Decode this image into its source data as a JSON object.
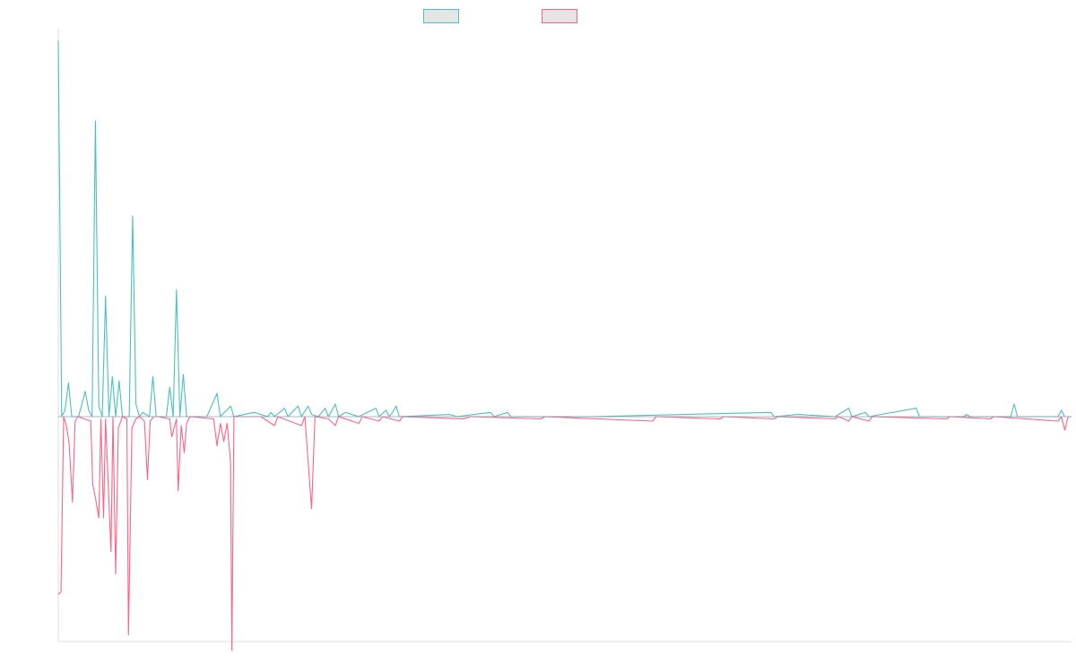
{
  "chart_data": {
    "type": "line",
    "title": "",
    "xlabel": "",
    "ylabel": "",
    "legend_position": "top-center",
    "grid": false,
    "colors": {
      "series_a": "#4bc0c0",
      "series_b": "#ff6384",
      "legend_fill": "#e5e5e5",
      "axis": "#dddddd",
      "zero_line": "#8899aa"
    },
    "x_range": [
      0,
      300
    ],
    "ylim": [
      -1.0,
      1.82
    ],
    "series": [
      {
        "name": "",
        "color": "#4bc0c0",
        "points": [
          [
            0,
            1.78
          ],
          [
            1,
            0.0
          ],
          [
            2,
            0.03
          ],
          [
            3,
            0.16
          ],
          [
            4,
            0.0
          ],
          [
            5,
            0.0
          ],
          [
            6,
            0.0
          ],
          [
            8,
            0.12
          ],
          [
            9,
            0.03
          ],
          [
            10,
            0.0
          ],
          [
            11,
            1.4
          ],
          [
            12,
            0.05
          ],
          [
            13,
            0.0
          ],
          [
            14,
            0.57
          ],
          [
            15,
            0.0
          ],
          [
            16,
            0.19
          ],
          [
            17,
            0.0
          ],
          [
            18,
            0.17
          ],
          [
            19,
            0.0
          ],
          [
            20,
            0.0
          ],
          [
            21,
            0.0
          ],
          [
            22,
            0.95
          ],
          [
            23,
            0.06
          ],
          [
            24,
            0.0
          ],
          [
            25,
            0.02
          ],
          [
            27,
            0.0
          ],
          [
            28,
            0.19
          ],
          [
            29,
            0.0
          ],
          [
            32,
            0.0
          ],
          [
            33,
            0.14
          ],
          [
            34,
            0.0
          ],
          [
            35,
            0.6
          ],
          [
            36,
            0.0
          ],
          [
            37,
            0.2
          ],
          [
            38,
            0.0
          ],
          [
            44,
            0.0
          ],
          [
            47,
            0.11
          ],
          [
            48,
            0.0
          ],
          [
            51,
            0.05
          ],
          [
            52,
            0.0
          ],
          [
            55,
            0.01
          ],
          [
            58,
            0.02
          ],
          [
            62,
            0.0
          ],
          [
            63,
            0.02
          ],
          [
            64,
            0.0
          ],
          [
            67,
            0.04
          ],
          [
            68,
            0.0
          ],
          [
            71,
            0.05
          ],
          [
            72,
            0.0
          ],
          [
            74,
            0.05
          ],
          [
            75,
            0.01
          ],
          [
            77,
            0.0
          ],
          [
            79,
            0.04
          ],
          [
            80,
            0.0
          ],
          [
            82,
            0.06
          ],
          [
            83,
            0.0
          ],
          [
            85,
            0.02
          ],
          [
            89,
            0.0
          ],
          [
            94,
            0.04
          ],
          [
            95,
            0.0
          ],
          [
            97,
            0.03
          ],
          [
            98,
            0.0
          ],
          [
            99,
            0.02
          ],
          [
            100,
            0.05
          ],
          [
            101,
            0.0
          ],
          [
            116,
            0.01
          ],
          [
            118,
            0.0
          ],
          [
            128,
            0.02
          ],
          [
            129,
            0.0
          ],
          [
            133,
            0.02
          ],
          [
            134,
            0.0
          ],
          [
            158,
            0.0
          ],
          [
            211,
            0.02
          ],
          [
            212,
            0.0
          ],
          [
            219,
            0.01
          ],
          [
            230,
            0.0
          ],
          [
            234,
            0.04
          ],
          [
            235,
            0.0
          ],
          [
            239,
            0.02
          ],
          [
            240,
            0.0
          ],
          [
            254,
            0.04
          ],
          [
            255,
            0.0
          ],
          [
            268,
            0.0
          ],
          [
            269,
            0.01
          ],
          [
            270,
            0.0
          ],
          [
            282,
            0.0
          ],
          [
            283,
            0.06
          ],
          [
            284,
            0.0
          ],
          [
            296,
            0.0
          ],
          [
            297,
            0.03
          ],
          [
            298,
            0.0
          ]
        ]
      },
      {
        "name": "",
        "color": "#ff6384",
        "points": [
          [
            0,
            -0.79
          ],
          [
            0.8,
            -0.78
          ],
          [
            1.6,
            0.0
          ],
          [
            2.4,
            -0.04
          ],
          [
            3.2,
            -0.12
          ],
          [
            4.2,
            -0.38
          ],
          [
            5,
            -0.02
          ],
          [
            5.8,
            0.0
          ],
          [
            9.6,
            -0.02
          ],
          [
            10.2,
            -0.3
          ],
          [
            11,
            -0.36
          ],
          [
            12,
            -0.45
          ],
          [
            12.6,
            -0.01
          ],
          [
            13.4,
            -0.45
          ],
          [
            14,
            -0.01
          ],
          [
            15.6,
            -0.6
          ],
          [
            16.2,
            0.0
          ],
          [
            17,
            -0.7
          ],
          [
            17.8,
            -0.05
          ],
          [
            19,
            0.0
          ],
          [
            20.3,
            -0.01
          ],
          [
            20.8,
            -0.97
          ],
          [
            21.8,
            -0.05
          ],
          [
            23,
            -0.01
          ],
          [
            24,
            0.0
          ],
          [
            25.5,
            -0.02
          ],
          [
            26.4,
            -0.28
          ],
          [
            27.2,
            -0.02
          ],
          [
            28.2,
            0.0
          ],
          [
            29.5,
            0.0
          ],
          [
            33,
            -0.01
          ],
          [
            33.6,
            -0.09
          ],
          [
            35,
            -0.01
          ],
          [
            35.5,
            -0.33
          ],
          [
            36.4,
            -0.04
          ],
          [
            37.3,
            -0.16
          ],
          [
            38,
            -0.03
          ],
          [
            39,
            0.0
          ],
          [
            46,
            -0.01
          ],
          [
            47,
            -0.13
          ],
          [
            48,
            -0.03
          ],
          [
            49,
            -0.11
          ],
          [
            50,
            -0.03
          ],
          [
            51,
            -0.2
          ],
          [
            51.4,
            -1.04
          ],
          [
            52,
            0.0
          ],
          [
            60,
            0.0
          ],
          [
            64,
            -0.04
          ],
          [
            65,
            0.0
          ],
          [
            72,
            -0.04
          ],
          [
            73,
            0.0
          ],
          [
            75,
            -0.41
          ],
          [
            76,
            0.0
          ],
          [
            80,
            -0.01
          ],
          [
            82,
            -0.04
          ],
          [
            83,
            0.0
          ],
          [
            89,
            -0.03
          ],
          [
            90,
            0.0
          ],
          [
            95,
            -0.02
          ],
          [
            96,
            0.0
          ],
          [
            101,
            -0.02
          ],
          [
            102,
            0.0
          ],
          [
            120,
            -0.01
          ],
          [
            122,
            0.0
          ],
          [
            143,
            -0.01
          ],
          [
            144,
            0.0
          ],
          [
            176,
            -0.02
          ],
          [
            177,
            0.0
          ],
          [
            196,
            -0.01
          ],
          [
            197,
            0.0
          ],
          [
            212,
            -0.01
          ],
          [
            213,
            0.0
          ],
          [
            230,
            -0.01
          ],
          [
            231,
            0.0
          ],
          [
            234,
            -0.02
          ],
          [
            235,
            0.0
          ],
          [
            240,
            -0.02
          ],
          [
            241,
            0.0
          ],
          [
            263,
            -0.01
          ],
          [
            264,
            0.0
          ],
          [
            276,
            -0.01
          ],
          [
            277,
            0.0
          ],
          [
            296,
            -0.02
          ],
          [
            297,
            0.0
          ],
          [
            298,
            -0.06
          ],
          [
            299,
            0.0
          ],
          [
            300,
            0.0
          ]
        ]
      }
    ]
  }
}
